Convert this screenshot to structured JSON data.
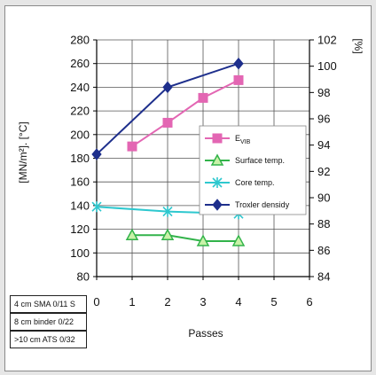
{
  "chart_data": {
    "type": "line",
    "xlabel": "Passes",
    "ylabel_left": "[MN/m²]. [°C]",
    "ylabel_right": "[%]",
    "x_ticks": [
      "0",
      "1",
      "2",
      "3",
      "4",
      "5",
      "6"
    ],
    "y_left_ticks": [
      "80",
      "100",
      "120",
      "140",
      "160",
      "180",
      "200",
      "220",
      "240",
      "260",
      "280"
    ],
    "y_right_ticks": [
      "84",
      "86",
      "88",
      "90",
      "92",
      "94",
      "96",
      "98",
      "100",
      "102"
    ],
    "xlim": [
      0,
      6
    ],
    "ylim_left": [
      80,
      280
    ],
    "ylim_right": [
      84,
      102
    ],
    "grid": true,
    "legend_position": "right",
    "series": [
      {
        "name": "E_VIB",
        "axis": "left",
        "color": "#e366b3",
        "marker": "square",
        "x": [
          1,
          2,
          3,
          4
        ],
        "y": [
          190,
          210,
          231,
          246
        ]
      },
      {
        "name": "Surface temp.",
        "axis": "left",
        "color": "#32b34a",
        "marker": "triangle",
        "x": [
          1,
          2,
          3,
          4
        ],
        "y": [
          115,
          115,
          110,
          110
        ]
      },
      {
        "name": "Core temp.",
        "axis": "left",
        "color": "#2ec8cf",
        "marker": "star",
        "x": [
          0,
          2,
          4
        ],
        "y": [
          139,
          135,
          133
        ]
      },
      {
        "name": "Troxler densidy",
        "axis": "right",
        "color": "#1e2f8c",
        "marker": "diamond",
        "x": [
          0,
          2,
          4
        ],
        "y": [
          93.3,
          98.4,
          100.2
        ]
      }
    ],
    "legend_labels": [
      {
        "main": "E",
        "sub": "VIB"
      },
      {
        "main": "Surface temp.",
        "sub": ""
      },
      {
        "main": "Core temp.",
        "sub": ""
      },
      {
        "main": "Troxler densidy",
        "sub": ""
      }
    ]
  },
  "layers": [
    "4 cm SMA 0/11 S",
    "8 cm binder 0/22",
    ">10 cm ATS 0/32"
  ]
}
